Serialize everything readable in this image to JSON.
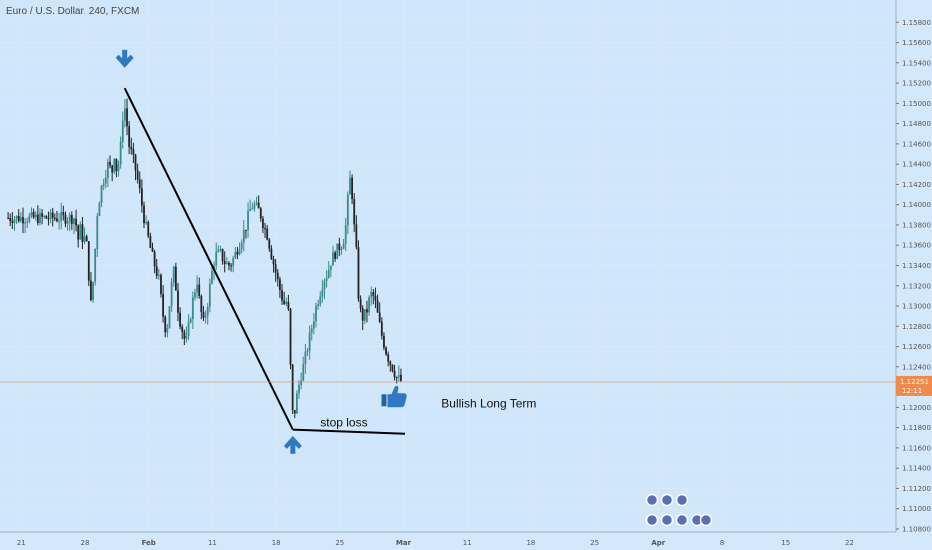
{
  "header": {
    "title": "Euro / U.S. Dollar, 240, FXCM"
  },
  "chart_data": {
    "type": "candlestick",
    "symbol": "Euro / U.S. Dollar, 240, FXCM",
    "y_ticks": [
      "1.15800",
      "1.15600",
      "1.15400",
      "1.15200",
      "1.15000",
      "1.14800",
      "1.14600",
      "1.14400",
      "1.14200",
      "1.14000",
      "1.13800",
      "1.13600",
      "1.13400",
      "1.13200",
      "1.13000",
      "1.12800",
      "1.12600",
      "1.12400",
      "1.12200",
      "1.12000",
      "1.11800",
      "1.11600",
      "1.11400",
      "1.11200",
      "1.11000",
      "1.10800"
    ],
    "y_tick_values": [
      1.158,
      1.156,
      1.154,
      1.152,
      1.15,
      1.148,
      1.146,
      1.144,
      1.142,
      1.14,
      1.138,
      1.136,
      1.134,
      1.132,
      1.13,
      1.128,
      1.126,
      1.124,
      1.122,
      1.12,
      1.118,
      1.116,
      1.114,
      1.112,
      1.11,
      1.108
    ],
    "ylim": [
      1.1077,
      1.1602
    ],
    "x_ticks": [
      {
        "label": "21",
        "bold": false
      },
      {
        "label": "28",
        "bold": false
      },
      {
        "label": "Feb",
        "bold": true
      },
      {
        "label": "11",
        "bold": false
      },
      {
        "label": "18",
        "bold": false
      },
      {
        "label": "25",
        "bold": false
      },
      {
        "label": "Mar",
        "bold": true
      },
      {
        "label": "11",
        "bold": false
      },
      {
        "label": "18",
        "bold": false
      },
      {
        "label": "25",
        "bold": false
      },
      {
        "label": "Apr",
        "bold": true
      },
      {
        "label": "8",
        "bold": false
      },
      {
        "label": "15",
        "bold": false
      },
      {
        "label": "22",
        "bold": false
      }
    ],
    "current_price": {
      "value": 1.12251,
      "label": "1.12251",
      "countdown": "12:11"
    },
    "path_points": [
      [
        0,
        1.1387
      ],
      [
        0.05,
        1.1366
      ],
      [
        0.09,
        1.1378
      ],
      [
        0.13,
        1.1362
      ],
      [
        0.17,
        1.1372
      ],
      [
        0.2,
        1.1345
      ],
      [
        0.23,
        1.1318
      ],
      [
        0.25,
        1.1302
      ],
      [
        0.29,
        1.1328
      ],
      [
        0.35,
        1.1392
      ],
      [
        0.4,
        1.1413
      ],
      [
        0.46,
        1.1428
      ],
      [
        0.52,
        1.144
      ],
      [
        0.58,
        1.1432
      ],
      [
        0.62,
        1.1452
      ],
      [
        0.66,
        1.143
      ],
      [
        0.7,
        1.1448
      ],
      [
        0.74,
        1.147
      ],
      [
        0.76,
        1.1505
      ],
      [
        0.8,
        1.1488
      ],
      [
        0.85,
        1.1458
      ],
      [
        0.9,
        1.1448
      ],
      [
        0.96,
        1.1432
      ],
      [
        1.02,
        1.1412
      ],
      [
        1.08,
        1.1388
      ],
      [
        1.14,
        1.137
      ],
      [
        1.2,
        1.1352
      ],
      [
        1.26,
        1.1338
      ],
      [
        1.32,
        1.1325
      ],
      [
        1.36,
        1.1302
      ],
      [
        1.4,
        1.1282
      ],
      [
        1.44,
        1.1275
      ],
      [
        1.48,
        1.13
      ],
      [
        1.52,
        1.1322
      ],
      [
        1.56,
        1.1338
      ],
      [
        1.6,
        1.1305
      ],
      [
        1.64,
        1.1288
      ],
      [
        1.7,
        1.1272
      ],
      [
        1.74,
        1.1262
      ],
      [
        1.8,
        1.1285
      ],
      [
        1.86,
        1.131
      ],
      [
        1.92,
        1.1326
      ],
      [
        1.96,
        1.13
      ],
      [
        2.02,
        1.1282
      ],
      [
        2.08,
        1.1302
      ],
      [
        2.14,
        1.133
      ],
      [
        2.2,
        1.135
      ],
      [
        2.28,
        1.1352
      ],
      [
        2.36,
        1.1342
      ],
      [
        2.44,
        1.134
      ],
      [
        2.52,
        1.1352
      ],
      [
        2.6,
        1.1365
      ],
      [
        2.68,
        1.1378
      ],
      [
        2.74,
        1.1394
      ],
      [
        2.8,
        1.14
      ],
      [
        2.86,
        1.1396
      ],
      [
        2.9,
        1.1393
      ],
      [
        2.96,
        1.138
      ],
      [
        3.02,
        1.137
      ],
      [
        3.08,
        1.1352
      ],
      [
        3.14,
        1.1336
      ],
      [
        3.2,
        1.132
      ],
      [
        3.26,
        1.1306
      ],
      [
        3.3,
        1.13
      ],
      [
        3.34,
        1.131
      ],
      [
        3.38,
        1.1245
      ],
      [
        3.41,
        1.1195
      ],
      [
        3.44,
        1.1192
      ],
      [
        3.48,
        1.121
      ],
      [
        3.54,
        1.123
      ],
      [
        3.6,
        1.1244
      ],
      [
        3.66,
        1.1262
      ],
      [
        3.72,
        1.128
      ],
      [
        3.78,
        1.1298
      ],
      [
        3.84,
        1.1312
      ],
      [
        3.9,
        1.1326
      ],
      [
        3.96,
        1.1332
      ],
      [
        4.02,
        1.1345
      ],
      [
        4.08,
        1.1352
      ],
      [
        4.14,
        1.1358
      ],
      [
        4.2,
        1.1362
      ],
      [
        4.24,
        1.1372
      ],
      [
        4.28,
        1.14
      ],
      [
        4.3,
        1.1428
      ],
      [
        4.34,
        1.142
      ],
      [
        4.38,
        1.138
      ],
      [
        4.42,
        1.135
      ],
      [
        4.46,
        1.1298
      ],
      [
        4.52,
        1.1288
      ],
      [
        4.58,
        1.1295
      ],
      [
        4.64,
        1.1312
      ],
      [
        4.7,
        1.1308
      ],
      [
        4.76,
        1.1288
      ],
      [
        4.82,
        1.127
      ],
      [
        4.88,
        1.1256
      ],
      [
        4.94,
        1.1245
      ],
      [
        5.0,
        1.1238
      ],
      [
        5.04,
        1.123
      ],
      [
        5.08,
        1.1228
      ],
      [
        5.14,
        1.1225
      ]
    ],
    "annotations": {
      "downtrend_line": {
        "from": [
          0.78,
          1.1515
        ],
        "to": [
          3.42,
          1.1178
        ]
      },
      "stop_loss_line": {
        "from": [
          3.42,
          1.1178
        ],
        "to": [
          5.18,
          1.1174
        ]
      },
      "stop_loss_label": "stop loss",
      "bullish_label": "Bullish Long Term",
      "top_arrow": {
        "x": 0.78,
        "y": 1.1542,
        "direction": "down",
        "color": "#3079c2"
      },
      "bottom_arrow": {
        "x": 3.42,
        "y": 1.1165,
        "direction": "up",
        "color": "#3079c2"
      },
      "thumbs_up": {
        "x": 5.0,
        "y": 1.1205,
        "icon": "thumbs-up-icon",
        "color": "#3079c2"
      }
    },
    "colors": {
      "up": "#3a8a8a",
      "down": "#222222",
      "background": "#cfe6fb",
      "grid": "#dbe9f6",
      "price_tag": "#f08a4b"
    }
  }
}
